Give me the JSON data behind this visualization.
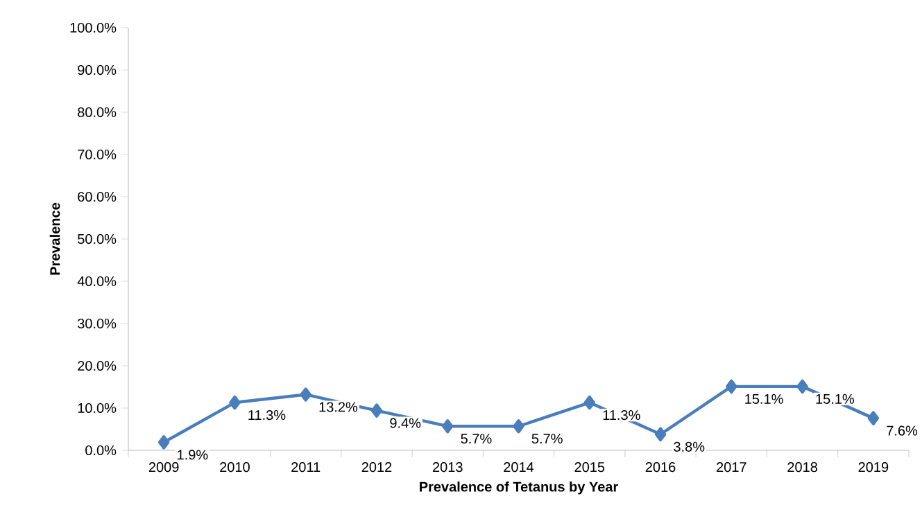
{
  "chart_data": {
    "type": "line",
    "xlabel": "Prevalence of Tetanus by Year",
    "ylabel": "Prevalence",
    "categories": [
      "2009",
      "2010",
      "2011",
      "2012",
      "2013",
      "2014",
      "2015",
      "2016",
      "2017",
      "2018",
      "2019"
    ],
    "values": [
      1.9,
      11.3,
      13.2,
      9.4,
      5.7,
      5.7,
      11.3,
      3.8,
      15.1,
      15.1,
      7.6
    ],
    "value_labels": [
      "1.9%",
      "11.3%",
      "13.2%",
      "9.4%",
      "5.7%",
      "5.7%",
      "11.3%",
      "3.8%",
      "15.1%",
      "15.1%",
      "7.6%"
    ],
    "color": "#4a7ebb",
    "marker": "diamond",
    "line_style": "solid",
    "grid": false,
    "ylim": [
      0,
      100
    ],
    "yticks": [
      {
        "value": 0,
        "label": "0.0%"
      },
      {
        "value": 10,
        "label": "10.0%"
      },
      {
        "value": 20,
        "label": "20.0%"
      },
      {
        "value": 30,
        "label": "30.0%"
      },
      {
        "value": 40,
        "label": "40.0%"
      },
      {
        "value": 50,
        "label": "50.0%"
      },
      {
        "value": 60,
        "label": "60.0%"
      },
      {
        "value": 70,
        "label": "70.0%"
      },
      {
        "value": 80,
        "label": "80.0%"
      },
      {
        "value": 90,
        "label": "90.0%"
      },
      {
        "value": 100,
        "label": "100.0%"
      }
    ]
  }
}
